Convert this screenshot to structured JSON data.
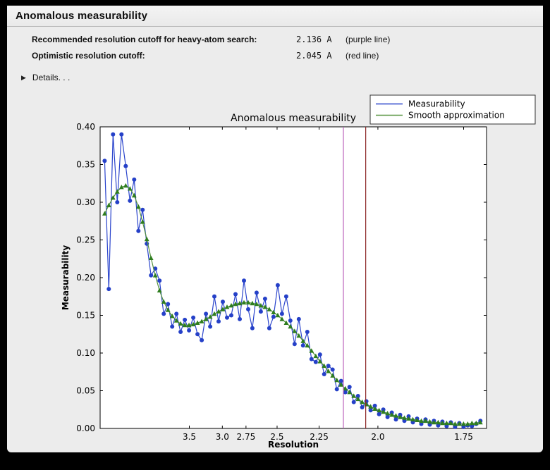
{
  "panel": {
    "title": "Anomalous measurability"
  },
  "icons": {
    "disclosure_triangle": "▶"
  },
  "info": {
    "rows": [
      {
        "label": "Recommended resolution cutoff for heavy-atom search:",
        "value": "2.136 A",
        "note": "(purple line)"
      },
      {
        "label": "Optimistic resolution cutoff:",
        "value": "2.045 A",
        "note": "(red line)"
      }
    ],
    "details_label": "Details. . ."
  },
  "chart_data": {
    "type": "line",
    "title": "Anomalous measurability",
    "xlabel": "Resolution",
    "ylabel": "Measurability",
    "x_axis_note": "x plotted as 1/d^2, resolution d in Angstrom, high resolution to the right",
    "x_range_s2": [
      0.002,
      0.347
    ],
    "ylim": [
      0,
      0.4
    ],
    "x_ticks": [
      {
        "label": "3.5",
        "d": 3.5
      },
      {
        "label": "3.0",
        "d": 3.0
      },
      {
        "label": "2.75",
        "d": 2.75
      },
      {
        "label": "2.5",
        "d": 2.5
      },
      {
        "label": "2.25",
        "d": 2.25
      },
      {
        "label": "2.0",
        "d": 2.0
      },
      {
        "label": "1.75",
        "d": 1.75
      }
    ],
    "y_ticks": [
      0,
      0.05,
      0.1,
      0.15,
      0.2,
      0.25,
      0.3,
      0.35,
      0.4
    ],
    "s2_start": 0.006,
    "s2_step": 0.00377,
    "series": [
      {
        "name": "Measurability",
        "color": "#2a44cc",
        "marker": "circle",
        "marker_color": "#2540c8",
        "values": [
          0.355,
          0.185,
          0.39,
          0.3,
          0.39,
          0.348,
          0.302,
          0.33,
          0.262,
          0.29,
          0.245,
          0.203,
          0.212,
          0.196,
          0.152,
          0.165,
          0.135,
          0.152,
          0.128,
          0.144,
          0.13,
          0.147,
          0.125,
          0.117,
          0.152,
          0.135,
          0.175,
          0.142,
          0.168,
          0.147,
          0.15,
          0.178,
          0.145,
          0.196,
          0.158,
          0.133,
          0.18,
          0.155,
          0.172,
          0.133,
          0.148,
          0.19,
          0.152,
          0.175,
          0.143,
          0.112,
          0.145,
          0.11,
          0.128,
          0.092,
          0.088,
          0.098,
          0.072,
          0.083,
          0.078,
          0.052,
          0.063,
          0.048,
          0.055,
          0.035,
          0.043,
          0.028,
          0.036,
          0.024,
          0.03,
          0.019,
          0.025,
          0.015,
          0.021,
          0.012,
          0.018,
          0.01,
          0.016,
          0.008,
          0.013,
          0.006,
          0.012,
          0.005,
          0.01,
          0.004,
          0.009,
          0.003,
          0.008,
          0.002,
          0.007,
          0.002,
          0.004,
          0.003,
          0.006,
          0.01
        ]
      },
      {
        "name": "Smooth approximation",
        "color": "#55923e",
        "marker": "triangle",
        "marker_color": "#2e7d1e",
        "values": [
          0.285,
          0.296,
          0.306,
          0.314,
          0.32,
          0.322,
          0.318,
          0.309,
          0.294,
          0.274,
          0.251,
          0.226,
          0.203,
          0.183,
          0.168,
          0.157,
          0.149,
          0.143,
          0.139,
          0.137,
          0.137,
          0.138,
          0.14,
          0.142,
          0.145,
          0.148,
          0.152,
          0.155,
          0.158,
          0.161,
          0.163,
          0.165,
          0.166,
          0.167,
          0.167,
          0.166,
          0.165,
          0.163,
          0.161,
          0.158,
          0.154,
          0.15,
          0.145,
          0.14,
          0.135,
          0.129,
          0.123,
          0.116,
          0.11,
          0.103,
          0.096,
          0.089,
          0.083,
          0.076,
          0.07,
          0.064,
          0.058,
          0.053,
          0.048,
          0.043,
          0.039,
          0.035,
          0.032,
          0.029,
          0.026,
          0.024,
          0.022,
          0.02,
          0.018,
          0.017,
          0.015,
          0.014,
          0.013,
          0.012,
          0.011,
          0.01,
          0.01,
          0.009,
          0.008,
          0.008,
          0.007,
          0.007,
          0.007,
          0.006,
          0.006,
          0.006,
          0.006,
          0.007,
          0.007,
          0.008
        ]
      }
    ],
    "vlines": [
      {
        "name": "purple line",
        "resolution": 2.136,
        "color": "#bb63bb"
      },
      {
        "name": "red line",
        "resolution": 2.045,
        "color": "#8b2323"
      }
    ],
    "legend": {
      "position": "upper right",
      "entries": [
        "Measurability",
        "Smooth approximation"
      ]
    }
  }
}
